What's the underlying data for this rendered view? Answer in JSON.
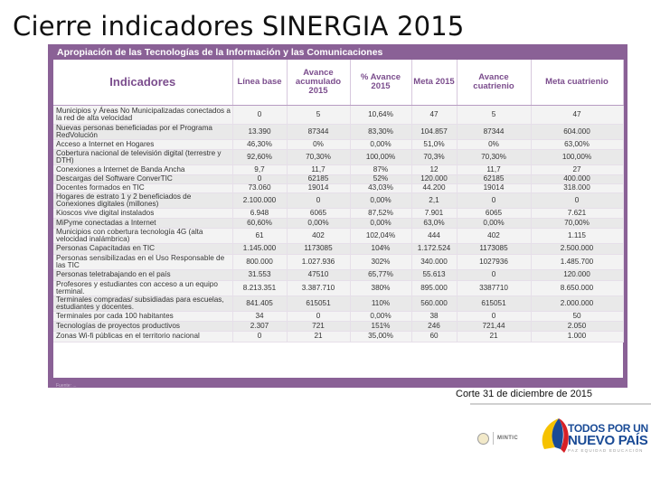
{
  "slide": {
    "title": "Cierre indicadores SINERGIA 2015",
    "cut_date": "Corte 31 de diciembre de 2015"
  },
  "panel": {
    "header": "Apropiación de las Tecnologías de la Información y las Comunicaciones",
    "footnote": "Fuente: ..."
  },
  "table": {
    "columns": [
      "Indicadores",
      "Línea base",
      "Avance acumulado 2015",
      "% Avance 2015",
      "Meta 2015",
      "Avance cuatrienio",
      "Meta cuatrienio"
    ],
    "rows": [
      [
        "Municipios y Áreas No Municipalizadas conectados a la red de alta velocidad",
        "0",
        "5",
        "10,64%",
        "47",
        "5",
        "47"
      ],
      [
        "Nuevas personas beneficiadas por el Programa RedVolución",
        "13.390",
        "87344",
        "83,30%",
        "104.857",
        "87344",
        "604.000"
      ],
      [
        "Acceso a Internet en Hogares",
        "46,30%",
        "0%",
        "0,00%",
        "51,0%",
        "0%",
        "63,00%"
      ],
      [
        "Cobertura nacional de televisión digital (terrestre y DTH)",
        "92,60%",
        "70,30%",
        "100,00%",
        "70,3%",
        "70,30%",
        "100,00%"
      ],
      [
        "Conexiones a Internet de Banda Ancha",
        "9,7",
        "11,7",
        "87%",
        "12",
        "11,7",
        "27"
      ],
      [
        "Descargas del Software ConverTIC",
        "0",
        "62185",
        "52%",
        "120.000",
        "62185",
        "400.000"
      ],
      [
        "Docentes formados en TIC",
        "73.060",
        "19014",
        "43,03%",
        "44.200",
        "19014",
        "318.000"
      ],
      [
        "Hogares de estrato 1 y 2 beneficiados de Conexiones digitales (millones)",
        "2.100.000",
        "0",
        "0,00%",
        "2,1",
        "0",
        "0"
      ],
      [
        "Kioscos vive digital instalados",
        "6.948",
        "6065",
        "87,52%",
        "7.901",
        "6065",
        "7.621"
      ],
      [
        "MiPyme conectadas a Internet",
        "60,60%",
        "0,00%",
        "0,00%",
        "63,0%",
        "0,00%",
        "70,00%"
      ],
      [
        "Municipios con cobertura tecnología 4G (alta velocidad inalámbrica)",
        "61",
        "402",
        "102,04%",
        "444",
        "402",
        "1.115"
      ],
      [
        "Personas Capacitadas en TIC",
        "1.145.000",
        "1173085",
        "104%",
        "1.172.524",
        "1173085",
        "2.500.000"
      ],
      [
        "Personas sensibilizadas en el Uso Responsable de las TIC",
        "800.000",
        "1.027.936",
        "302%",
        "340.000",
        "1027936",
        "1.485.700"
      ],
      [
        "Personas teletrabajando en el país",
        "31.553",
        "47510",
        "65,77%",
        "55.613",
        "0",
        "120.000"
      ],
      [
        "Profesores y estudiantes con acceso a un equipo terminal.",
        "8.213.351",
        "3.387.710",
        "380%",
        "895.000",
        "3387710",
        "8.650.000"
      ],
      [
        "Terminales compradas/ subsidiadas para escuelas, estudiantes y docentes.",
        "841.405",
        "615051",
        "110%",
        "560.000",
        "615051",
        "2.000.000"
      ],
      [
        "Terminales por cada 100 habitantes",
        "34",
        "0",
        "0,00%",
        "38",
        "0",
        "50"
      ],
      [
        "Tecnologías de proyectos productivos",
        "2.307",
        "721",
        "151%",
        "246",
        "721,44",
        "2.050"
      ],
      [
        "Zonas Wi-fi públicas en el territorio nacional",
        "0",
        "21",
        "35,00%",
        "60",
        "21",
        "1.000"
      ]
    ]
  },
  "footer": {
    "mintic_label": "MINTIC",
    "logo_line1": "TODOS POR UN",
    "logo_line2": "NUEVO PAÍS",
    "logo_line3": "PAZ  EQUIDAD  EDUCACIÓN"
  },
  "colors": {
    "panel": "#8a6196",
    "header_text": "#7b4d8d",
    "logo_blue": "#1a4b96",
    "logo_yellow": "#f6c200",
    "logo_red": "#d62027"
  }
}
